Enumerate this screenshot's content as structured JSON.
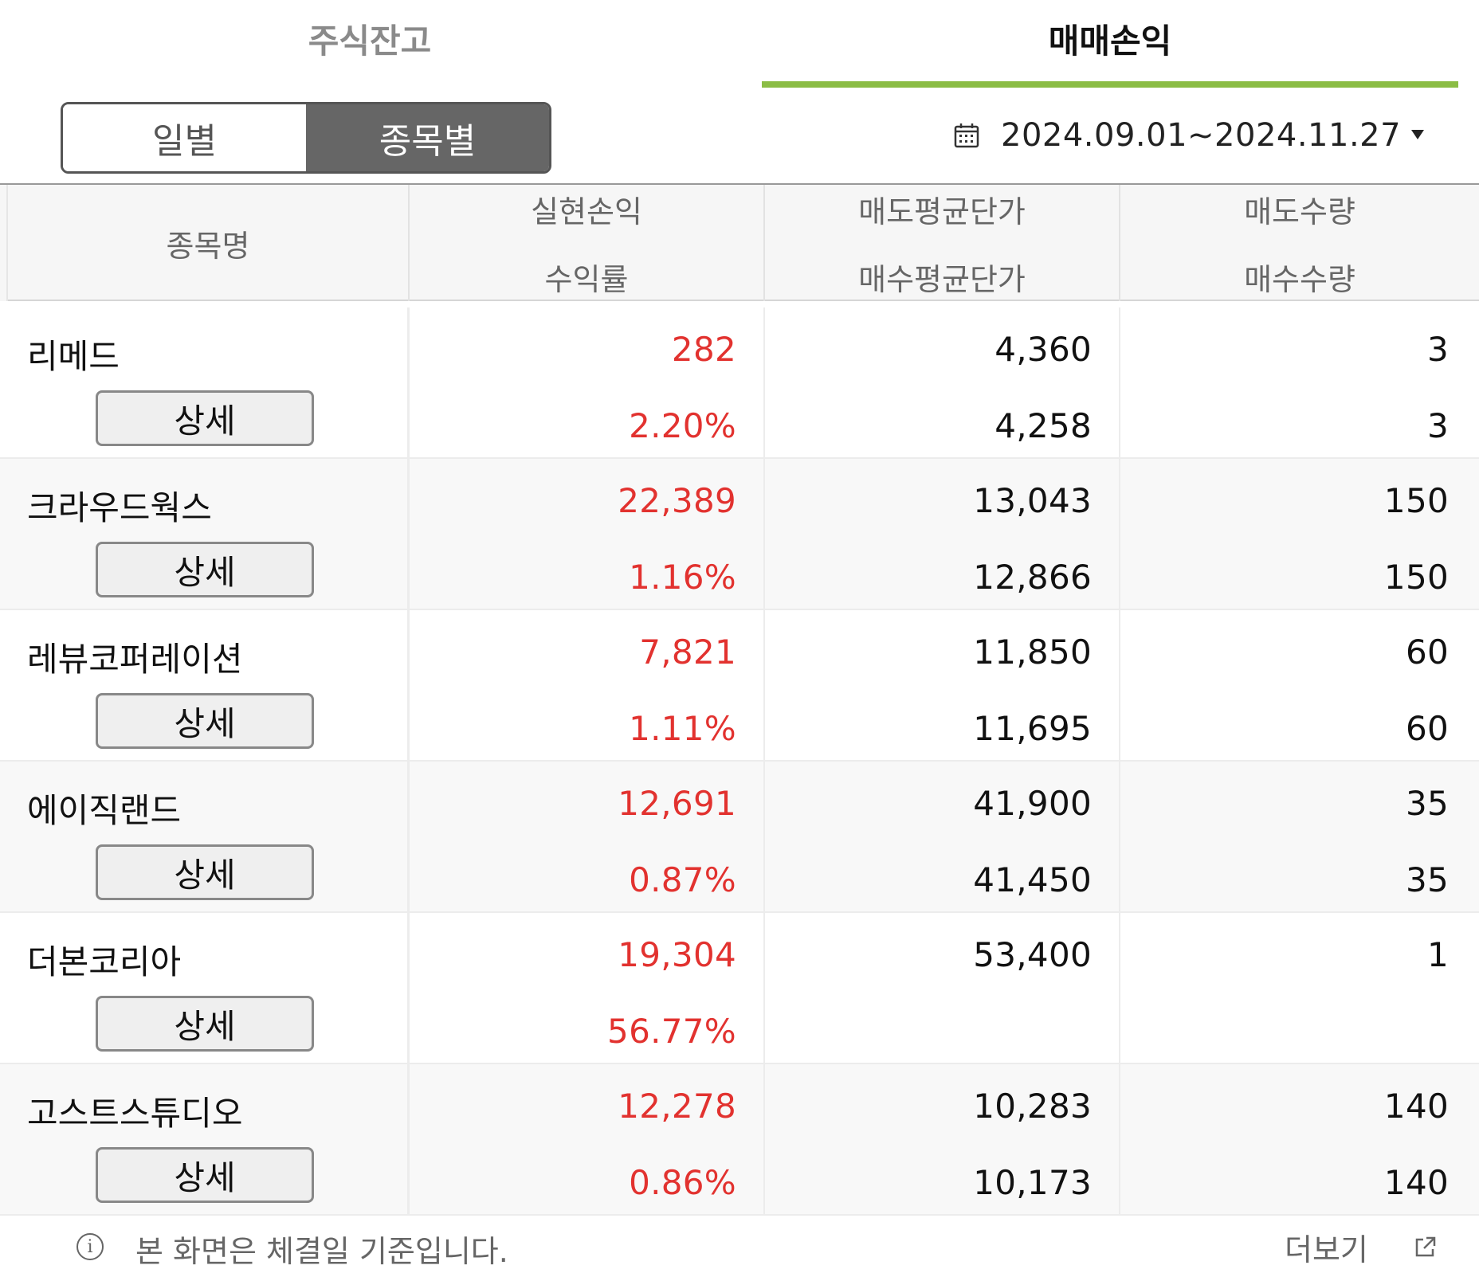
{
  "tabs": [
    {
      "label": "주식잔고",
      "active": false
    },
    {
      "label": "매매손익",
      "active": true
    }
  ],
  "toggle": {
    "daily": "일별",
    "by_stock": "종목별",
    "selected": "종목별"
  },
  "date_range": {
    "text": "2024.09.01~2024.11.27",
    "icon": "calendar-icon"
  },
  "table": {
    "headers": {
      "name": "종목명",
      "col1_top": "실현손익",
      "col1_bottom": "수익률",
      "col2_top": "매도평균단가",
      "col2_bottom": "매수평균단가",
      "col3_top": "매도수량",
      "col3_bottom": "매수수량"
    },
    "detail_label": "상세",
    "rows": [
      {
        "name": "리메드",
        "profit": "282",
        "rate": "2.20%",
        "sell_avg": "4,360",
        "buy_avg": "4,258",
        "sell_qty": "3",
        "buy_qty": "3"
      },
      {
        "name": "크라우드웍스",
        "profit": "22,389",
        "rate": "1.16%",
        "sell_avg": "13,043",
        "buy_avg": "12,866",
        "sell_qty": "150",
        "buy_qty": "150"
      },
      {
        "name": "레뷰코퍼레이션",
        "profit": "7,821",
        "rate": "1.11%",
        "sell_avg": "11,850",
        "buy_avg": "11,695",
        "sell_qty": "60",
        "buy_qty": "60"
      },
      {
        "name": "에이직랜드",
        "profit": "12,691",
        "rate": "0.87%",
        "sell_avg": "41,900",
        "buy_avg": "41,450",
        "sell_qty": "35",
        "buy_qty": "35"
      },
      {
        "name": "더본코리아",
        "profit": "19,304",
        "rate": "56.77%",
        "sell_avg": "53,400",
        "buy_avg": "",
        "sell_qty": "1",
        "buy_qty": ""
      },
      {
        "name": "고스트스튜디오",
        "profit": "12,278",
        "rate": "0.86%",
        "sell_avg": "10,283",
        "buy_avg": "10,173",
        "sell_qty": "140",
        "buy_qty": "140"
      }
    ]
  },
  "footer": {
    "note": "본 화면은 체결일 기준입니다.",
    "more": "더보기",
    "info_icon": "info-icon",
    "external_icon": "external-link-icon"
  },
  "colors": {
    "accent_green": "#8bbd45",
    "profit_red": "#e2322f",
    "toggle_active": "#666666"
  }
}
